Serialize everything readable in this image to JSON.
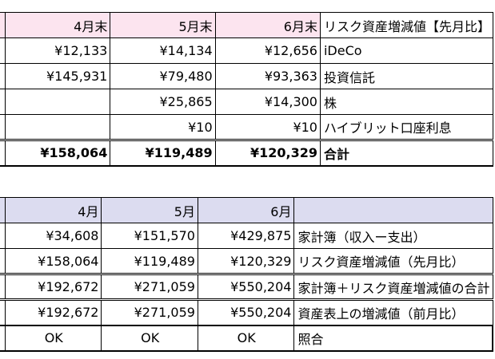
{
  "table1": {
    "header": [
      "",
      "4月末",
      "5月末",
      "6月末",
      "リスク資産増減値【先月比】"
    ],
    "rows": [
      [
        "",
        "¥12,133",
        "¥14,134",
        "¥12,656",
        "iDeCo"
      ],
      [
        "",
        "¥145,931",
        "¥79,480",
        "¥93,363",
        "投資信託"
      ],
      [
        "",
        "",
        "¥25,865",
        "¥14,300",
        "株"
      ],
      [
        "",
        "",
        "¥10",
        "¥10",
        "ハイブリット口座利息"
      ]
    ],
    "total": [
      "",
      "¥158,064",
      "¥119,489",
      "¥120,329",
      "合計"
    ]
  },
  "table2": {
    "header": [
      "",
      "4月",
      "5月",
      "6月",
      ""
    ],
    "rows": [
      [
        "",
        "¥34,608",
        "¥151,570",
        "¥429,875",
        "家計簿（収入ー支出）"
      ],
      [
        "",
        "¥158,064",
        "¥119,489",
        "¥120,329",
        "リスク資産増減値（先月比）"
      ],
      [
        "",
        "¥192,672",
        "¥271,059",
        "¥550,204",
        "家計簿＋リスク資産増減値の合計"
      ],
      [
        "",
        "¥192,672",
        "¥271,059",
        "¥550,204",
        "資産表上の増減値（前月比）"
      ],
      [
        "",
        "OK",
        "OK",
        "OK",
        "照合"
      ]
    ]
  },
  "colors": {
    "pink_header": "#fce4ef",
    "lavender_header": "#dcdcf0"
  }
}
